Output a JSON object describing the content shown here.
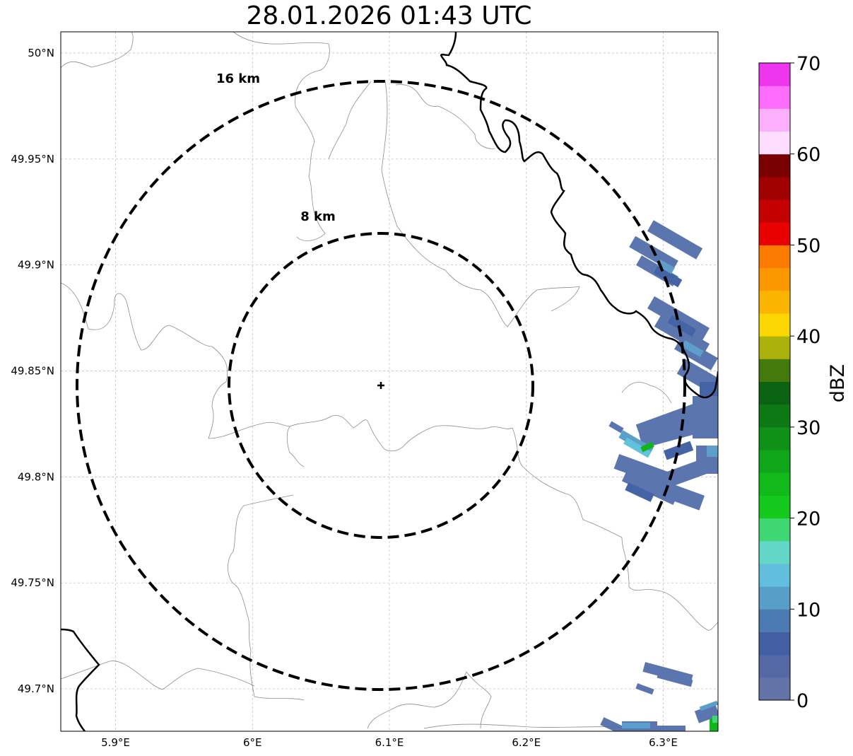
{
  "title": "28.01.2026 01:43 UTC",
  "map": {
    "lon_range": [
      5.86,
      6.34
    ],
    "lat_range": [
      49.68,
      50.01
    ],
    "lon_ticks": [
      {
        "value": 5.9,
        "label": "5.9°E"
      },
      {
        "value": 6.0,
        "label": "6°E"
      },
      {
        "value": 6.1,
        "label": "6.1°E"
      },
      {
        "value": 6.2,
        "label": "6.2°E"
      },
      {
        "value": 6.3,
        "label": "6.3°E"
      }
    ],
    "lat_ticks": [
      {
        "value": 50.0,
        "label": "50°N"
      },
      {
        "value": 49.95,
        "label": "49.95°N"
      },
      {
        "value": 49.9,
        "label": "49.9°N"
      },
      {
        "value": 49.85,
        "label": "49.85°N"
      },
      {
        "value": 49.8,
        "label": "49.8°N"
      },
      {
        "value": 49.75,
        "label": "49.75°N"
      },
      {
        "value": 49.7,
        "label": "49.7°N"
      }
    ],
    "gridlines": true,
    "radar_site": {
      "lon": 6.095,
      "lat": 49.843,
      "marker": "plus"
    },
    "range_rings": [
      {
        "radius_km": 8,
        "label": "8 km"
      },
      {
        "radius_km": 16,
        "label": "16 km"
      }
    ]
  },
  "colorbar": {
    "label": "dBZ",
    "min": 0,
    "max": 70,
    "step": 2.5,
    "ticks": [
      {
        "value": 0,
        "label": "0"
      },
      {
        "value": 10,
        "label": "10"
      },
      {
        "value": 20,
        "label": "20"
      },
      {
        "value": 30,
        "label": "30"
      },
      {
        "value": 40,
        "label": "40"
      },
      {
        "value": 50,
        "label": "50"
      },
      {
        "value": 60,
        "label": "60"
      },
      {
        "value": 70,
        "label": "70"
      }
    ],
    "colors": [
      "#6373a8",
      "#5368a4",
      "#4460a4",
      "#4b7bb2",
      "#579ec8",
      "#62bedd",
      "#63d7c7",
      "#3ed772",
      "#12c91c",
      "#11b91a",
      "#0fa719",
      "#0f9118",
      "#0d7914",
      "#0a6310",
      "#437a0b",
      "#aab20b",
      "#fcd600",
      "#fbb400",
      "#fb9800",
      "#fb7b00",
      "#e90000",
      "#c40000",
      "#a10000",
      "#780000",
      "#fddcff",
      "#fcb0fc",
      "#fd6cfc",
      "#ee35ee"
    ]
  }
}
